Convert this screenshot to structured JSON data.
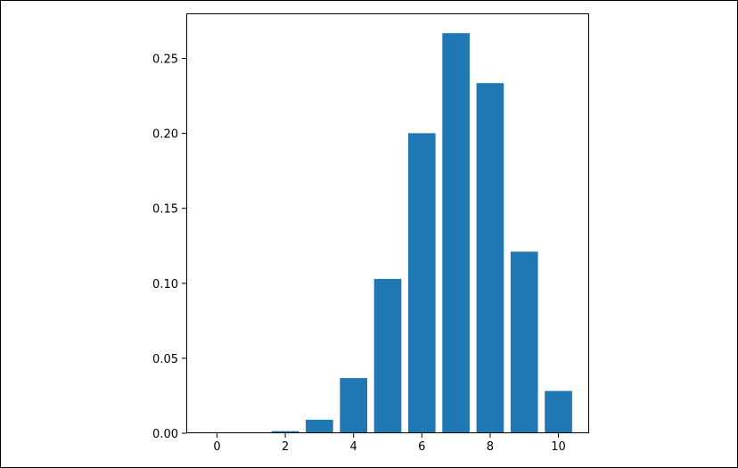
{
  "chart_data": {
    "type": "bar",
    "categories": [
      0,
      1,
      2,
      3,
      4,
      5,
      6,
      7,
      8,
      9,
      10
    ],
    "values": [
      0.0,
      0.0001,
      0.0014,
      0.009,
      0.0368,
      0.1029,
      0.2001,
      0.2668,
      0.2335,
      0.1211,
      0.0282
    ],
    "xticks": [
      "0",
      "2",
      "4",
      "6",
      "8",
      "10"
    ],
    "xtick_values": [
      0,
      2,
      4,
      6,
      8,
      10
    ],
    "yticks": [
      "0.00",
      "0.05",
      "0.10",
      "0.15",
      "0.20",
      "0.25"
    ],
    "ytick_values": [
      0.0,
      0.05,
      0.1,
      0.15,
      0.2,
      0.25
    ],
    "xlim": [
      -0.9,
      10.9
    ],
    "ylim": [
      0,
      0.28
    ],
    "title": "",
    "xlabel": "",
    "ylabel": "",
    "grid": false,
    "bar_color": "#1f77b4"
  }
}
